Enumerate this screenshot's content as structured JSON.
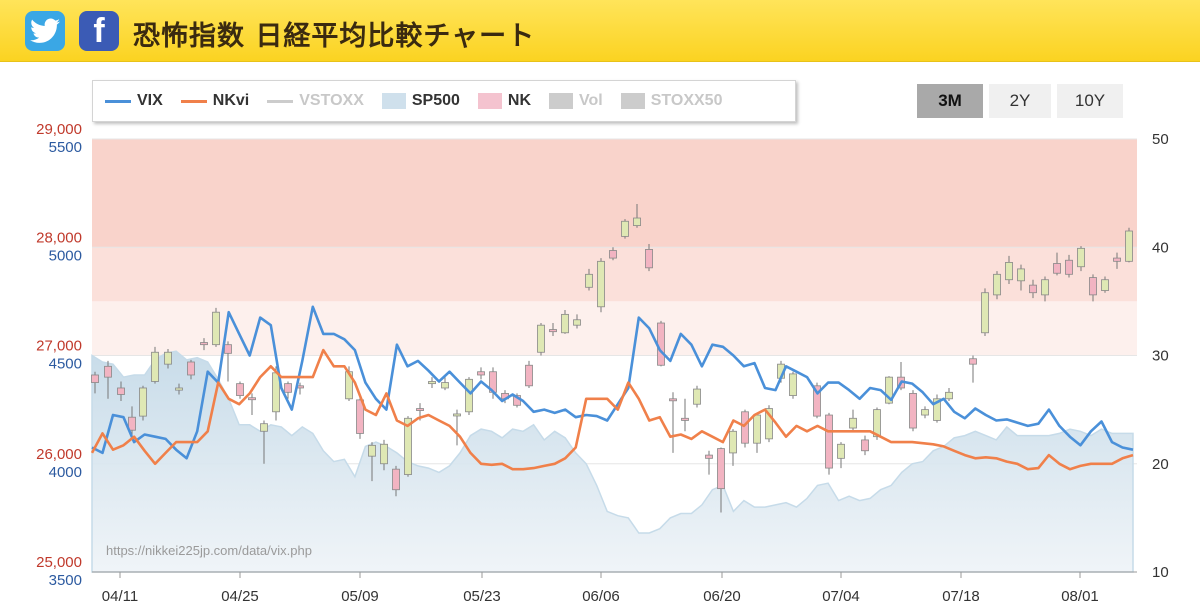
{
  "header": {
    "title": "恐怖指数 日経平均比較チャート",
    "twitter_icon": "twitter-icon",
    "facebook_icon": "facebook-icon",
    "facebook_glyph": "f"
  },
  "legend": [
    {
      "name": "VIX",
      "color": "#4a90d9",
      "kind": "line",
      "active": true
    },
    {
      "name": "NKvi",
      "color": "#f0804a",
      "kind": "line",
      "active": true
    },
    {
      "name": "VSTOXX",
      "color": "#cccccc",
      "kind": "line",
      "active": false
    },
    {
      "name": "SP500",
      "color": "#cfe0ec",
      "kind": "area",
      "active": true
    },
    {
      "name": "NK",
      "color": "#f4c3cf",
      "kind": "box",
      "active": true
    },
    {
      "name": "Vol",
      "color": "#cccccc",
      "kind": "box",
      "active": false
    },
    {
      "name": "STOXX50",
      "color": "#cccccc",
      "kind": "box",
      "active": false
    }
  ],
  "range_buttons": [
    {
      "label": "3M",
      "active": true
    },
    {
      "label": "2Y",
      "active": false
    },
    {
      "label": "10Y",
      "active": false
    }
  ],
  "watermark": "https://nikkei225jp.com/data/vix.php",
  "chart_data": {
    "type": "line",
    "axes": {
      "left_nk": {
        "ticks": [
          "29,000",
          "28,000",
          "27,000",
          "26,000",
          "25,000"
        ],
        "range": [
          25000,
          29000
        ],
        "color": "#c0392b"
      },
      "left_sp": {
        "ticks": [
          "5500",
          "5000",
          "4500",
          "4000",
          "3500"
        ],
        "range": [
          3500,
          5500
        ],
        "color": "#2c5aa0"
      },
      "right_vix": {
        "ticks": [
          "50",
          "40",
          "30",
          "20",
          "10"
        ],
        "range": [
          10,
          50
        ]
      }
    },
    "x_ticks": [
      "04/11",
      "04/25",
      "05/09",
      "05/23",
      "06/06",
      "06/20",
      "07/04",
      "07/18",
      "08/01"
    ],
    "bands": [
      {
        "from": 40,
        "to": 50,
        "color": "#f9d3cb"
      },
      {
        "from": 35,
        "to": 40,
        "color": "#fbe0da"
      },
      {
        "from": 30,
        "to": 35,
        "color": "#fdf0ed"
      }
    ],
    "series": [
      {
        "name": "VIX",
        "axis": "right_vix",
        "color": "#4a90d9",
        "values": [
          21.5,
          21.0,
          24.5,
          24.3,
          22.0,
          22.7,
          22.5,
          22.3,
          21.3,
          20.5,
          23.0,
          28.5,
          27.5,
          34.0,
          32.0,
          30.0,
          33.5,
          32.8,
          27.0,
          25.0,
          29.5,
          34.5,
          32.0,
          32.0,
          31.5,
          30.5,
          27.5,
          26.0,
          25.0,
          31.0,
          29.0,
          29.5,
          28.6,
          27.6,
          28.5,
          27.5,
          26.5,
          27.6,
          26.8,
          25.8,
          26.4,
          25.8,
          24.8,
          25.0,
          24.7,
          25.0,
          24.3,
          24.5,
          24.4,
          24.0,
          25.5,
          27.0,
          33.5,
          32.5,
          30.5,
          29.5,
          32.0,
          31.0,
          29.0,
          31.0,
          30.8,
          30.0,
          29.0,
          29.3,
          27.0,
          26.8,
          29.0,
          28.5,
          28.0,
          26.5,
          27.5,
          27.5,
          26.8,
          26.0,
          27.0,
          26.8,
          25.9,
          27.6,
          27.4,
          26.6,
          25.5,
          26.0,
          24.8,
          24.2,
          25.1,
          24.5,
          24.0,
          24.1,
          23.8,
          23.5,
          23.7,
          25.0,
          23.5,
          22.5,
          21.7,
          23.0,
          23.9,
          22.0,
          21.5,
          21.3
        ]
      },
      {
        "name": "NKvi",
        "axis": "right_vix",
        "color": "#f0804a",
        "values": [
          21.0,
          22.8,
          21.3,
          21.7,
          22.5,
          21.2,
          20.0,
          21.0,
          22.0,
          22.0,
          22.0,
          23.0,
          27.5,
          26.0,
          25.5,
          26.5,
          28.0,
          29.0,
          28.0,
          28.0,
          28.0,
          28.0,
          30.5,
          29.0,
          29.0,
          27.5,
          25.0,
          24.5,
          26.5,
          24.0,
          23.5,
          24.2,
          24.5,
          24.0,
          23.5,
          22.5,
          21.0,
          20.0,
          19.9,
          20.0,
          19.5,
          19.5,
          19.6,
          19.8,
          20.0,
          20.5,
          21.5,
          26.0,
          26.0,
          26.0,
          25.0,
          27.5,
          26.0,
          24.0,
          24.3,
          22.5,
          22.7,
          22.3,
          23.0,
          22.5,
          22.0,
          24.0,
          23.5,
          24.5,
          25.0,
          23.8,
          22.5,
          23.5,
          23.0,
          23.5,
          23.0,
          23.0,
          23.0,
          23.0,
          23.0,
          22.5,
          22.0,
          22.0,
          22.0,
          21.9,
          21.8,
          21.6,
          21.2,
          20.8,
          20.5,
          20.6,
          20.5,
          20.2,
          20.0,
          19.5,
          19.6,
          20.8,
          20.0,
          19.5,
          19.8,
          20.0,
          20.0,
          20.0,
          20.5,
          20.8
        ]
      },
      {
        "name": "SP500",
        "axis": "left_sp",
        "color": "#cfe0ec",
        "values": [
          4500,
          4470,
          4460,
          4400,
          4410,
          4410,
          4480,
          4510,
          4520,
          4480,
          4490,
          4470,
          4390,
          4300,
          4180,
          4180,
          4150,
          4180,
          4170,
          4130,
          4170,
          4140,
          4060,
          4010,
          4020,
          3940,
          4080,
          4100,
          4080,
          4050,
          4010,
          3990,
          3980,
          3960,
          3990,
          4050,
          4130,
          4160,
          4150,
          4120,
          4160,
          4150,
          4180,
          4110,
          4150,
          4120,
          4050,
          4000,
          3900,
          3780,
          3760,
          3750,
          3680,
          3680,
          3700,
          3750,
          3770,
          3770,
          3810,
          3880,
          3900,
          3780,
          3830,
          3800,
          3800,
          3810,
          3820,
          3800,
          3840,
          3900,
          3910,
          3830,
          3850,
          3830,
          3840,
          3880,
          3900,
          3960,
          4000,
          4010,
          4060,
          4080,
          4120,
          4130,
          4150,
          4130,
          4110,
          4170,
          4130,
          4130,
          4130,
          4130,
          4140,
          4160,
          4150,
          4130,
          4160,
          4140,
          4140,
          4140
        ]
      }
    ],
    "candles_nk": [
      {
        "x": 95,
        "o": 26750,
        "c": 26820,
        "h": 26850,
        "l": 26650,
        "up": false
      },
      {
        "x": 108,
        "o": 26800,
        "c": 26900,
        "h": 26950,
        "l": 26600,
        "up": false
      },
      {
        "x": 121,
        "o": 26700,
        "c": 26640,
        "h": 26760,
        "l": 26580,
        "up": false
      },
      {
        "x": 132,
        "o": 26430,
        "c": 26310,
        "h": 26530,
        "l": 26250,
        "up": false
      },
      {
        "x": 143,
        "o": 26440,
        "c": 26700,
        "h": 26720,
        "l": 26400,
        "up": true
      },
      {
        "x": 155,
        "o": 26760,
        "c": 27030,
        "h": 27080,
        "l": 26740,
        "up": true
      },
      {
        "x": 168,
        "o": 26920,
        "c": 27030,
        "h": 27060,
        "l": 26880,
        "up": true
      },
      {
        "x": 179,
        "o": 26680,
        "c": 26700,
        "h": 26740,
        "l": 26640,
        "up": true
      },
      {
        "x": 191,
        "o": 26820,
        "c": 26940,
        "h": 26960,
        "l": 26780,
        "up": false
      },
      {
        "x": 204,
        "o": 27100,
        "c": 27120,
        "h": 27160,
        "l": 27050,
        "up": false
      },
      {
        "x": 216,
        "o": 27100,
        "c": 27400,
        "h": 27440,
        "l": 27080,
        "up": true
      },
      {
        "x": 228,
        "o": 27100,
        "c": 27020,
        "h": 27130,
        "l": 26760,
        "up": false
      },
      {
        "x": 240,
        "o": 26740,
        "c": 26630,
        "h": 26760,
        "l": 26600,
        "up": false
      },
      {
        "x": 252,
        "o": 26610,
        "c": 26600,
        "h": 26650,
        "l": 26450,
        "up": false
      },
      {
        "x": 264,
        "o": 26300,
        "c": 26370,
        "h": 26400,
        "l": 26000,
        "up": true
      },
      {
        "x": 276,
        "o": 26480,
        "c": 26840,
        "h": 26900,
        "l": 26400,
        "up": true
      },
      {
        "x": 288,
        "o": 26740,
        "c": 26660,
        "h": 26760,
        "l": 26600,
        "up": false
      },
      {
        "x": 300,
        "o": 26700,
        "c": 26720,
        "h": 26750,
        "l": 26640,
        "up": false
      },
      {
        "x": 349,
        "o": 26600,
        "c": 26850,
        "h": 26900,
        "l": 26580,
        "up": true
      },
      {
        "x": 360,
        "o": 26590,
        "c": 26280,
        "h": 26610,
        "l": 26230,
        "up": false
      },
      {
        "x": 372,
        "o": 26070,
        "c": 26170,
        "h": 26200,
        "l": 25840,
        "up": true
      },
      {
        "x": 384,
        "o": 26000,
        "c": 26180,
        "h": 26220,
        "l": 25940,
        "up": true
      },
      {
        "x": 396,
        "o": 25950,
        "c": 25760,
        "h": 25980,
        "l": 25700,
        "up": false
      },
      {
        "x": 408,
        "o": 25900,
        "c": 26420,
        "h": 26440,
        "l": 25880,
        "up": true
      },
      {
        "x": 420,
        "o": 26510,
        "c": 26500,
        "h": 26560,
        "l": 26400,
        "up": false
      },
      {
        "x": 432,
        "o": 26740,
        "c": 26760,
        "h": 26800,
        "l": 26700,
        "up": true
      },
      {
        "x": 445,
        "o": 26700,
        "c": 26750,
        "h": 26800,
        "l": 26680,
        "up": true
      },
      {
        "x": 457,
        "o": 26450,
        "c": 26460,
        "h": 26500,
        "l": 26170,
        "up": true
      },
      {
        "x": 469,
        "o": 26480,
        "c": 26780,
        "h": 26800,
        "l": 26450,
        "up": true
      },
      {
        "x": 481,
        "o": 26850,
        "c": 26820,
        "h": 26890,
        "l": 26780,
        "up": false
      },
      {
        "x": 493,
        "o": 26850,
        "c": 26660,
        "h": 26890,
        "l": 26600,
        "up": false
      },
      {
        "x": 505,
        "o": 26650,
        "c": 26600,
        "h": 26680,
        "l": 26560,
        "up": false
      },
      {
        "x": 517,
        "o": 26630,
        "c": 26540,
        "h": 26650,
        "l": 26520,
        "up": false
      },
      {
        "x": 529,
        "o": 26720,
        "c": 26910,
        "h": 26950,
        "l": 26700,
        "up": false
      },
      {
        "x": 541,
        "o": 27030,
        "c": 27280,
        "h": 27300,
        "l": 27000,
        "up": true
      },
      {
        "x": 553,
        "o": 27220,
        "c": 27240,
        "h": 27300,
        "l": 27180,
        "up": false
      },
      {
        "x": 565,
        "o": 27210,
        "c": 27380,
        "h": 27420,
        "l": 27200,
        "up": true
      },
      {
        "x": 577,
        "o": 27280,
        "c": 27330,
        "h": 27380,
        "l": 27250,
        "up": true
      },
      {
        "x": 589,
        "o": 27630,
        "c": 27750,
        "h": 27800,
        "l": 27600,
        "up": true
      },
      {
        "x": 601,
        "o": 27450,
        "c": 27870,
        "h": 27900,
        "l": 27400,
        "up": true
      },
      {
        "x": 613,
        "o": 27900,
        "c": 27970,
        "h": 28000,
        "l": 27880,
        "up": false
      },
      {
        "x": 625,
        "o": 28100,
        "c": 28240,
        "h": 28260,
        "l": 28080,
        "up": true
      },
      {
        "x": 637,
        "o": 28200,
        "c": 28270,
        "h": 28400,
        "l": 28180,
        "up": true
      },
      {
        "x": 649,
        "o": 27980,
        "c": 27810,
        "h": 28030,
        "l": 27780,
        "up": false
      },
      {
        "x": 661,
        "o": 27300,
        "c": 26910,
        "h": 27320,
        "l": 26900,
        "up": false
      },
      {
        "x": 673,
        "o": 26600,
        "c": 26590,
        "h": 26660,
        "l": 26100,
        "up": false
      },
      {
        "x": 685,
        "o": 26420,
        "c": 26400,
        "h": 26600,
        "l": 26300,
        "up": false
      },
      {
        "x": 697,
        "o": 26550,
        "c": 26690,
        "h": 26720,
        "l": 26520,
        "up": true
      },
      {
        "x": 709,
        "o": 26080,
        "c": 26050,
        "h": 26120,
        "l": 25900,
        "up": false
      },
      {
        "x": 721,
        "o": 26140,
        "c": 25770,
        "h": 26150,
        "l": 25550,
        "up": false
      },
      {
        "x": 733,
        "o": 26100,
        "c": 26300,
        "h": 26320,
        "l": 25980,
        "up": true
      },
      {
        "x": 745,
        "o": 26480,
        "c": 26190,
        "h": 26500,
        "l": 26150,
        "up": false
      },
      {
        "x": 757,
        "o": 26190,
        "c": 26450,
        "h": 26470,
        "l": 26100,
        "up": true
      },
      {
        "x": 769,
        "o": 26230,
        "c": 26510,
        "h": 26540,
        "l": 26200,
        "up": true
      },
      {
        "x": 781,
        "o": 26790,
        "c": 26920,
        "h": 26950,
        "l": 26750,
        "up": true
      },
      {
        "x": 793,
        "o": 26830,
        "c": 26630,
        "h": 26850,
        "l": 26600,
        "up": true
      },
      {
        "x": 817,
        "o": 26720,
        "c": 26440,
        "h": 26750,
        "l": 26420,
        "up": false
      },
      {
        "x": 829,
        "o": 26450,
        "c": 25960,
        "h": 26470,
        "l": 25900,
        "up": false
      },
      {
        "x": 841,
        "o": 26050,
        "c": 26180,
        "h": 26200,
        "l": 25960,
        "up": true
      },
      {
        "x": 853,
        "o": 26330,
        "c": 26420,
        "h": 26500,
        "l": 26300,
        "up": true
      },
      {
        "x": 865,
        "o": 26220,
        "c": 26120,
        "h": 26260,
        "l": 26080,
        "up": false
      },
      {
        "x": 877,
        "o": 26250,
        "c": 26500,
        "h": 26520,
        "l": 26220,
        "up": true
      },
      {
        "x": 889,
        "o": 26560,
        "c": 26800,
        "h": 26810,
        "l": 26550,
        "up": true
      },
      {
        "x": 901,
        "o": 26800,
        "c": 26700,
        "h": 26940,
        "l": 26680,
        "up": false
      },
      {
        "x": 913,
        "o": 26650,
        "c": 26330,
        "h": 26680,
        "l": 26300,
        "up": false
      },
      {
        "x": 925,
        "o": 26450,
        "c": 26500,
        "h": 26530,
        "l": 26420,
        "up": true
      },
      {
        "x": 937,
        "o": 26400,
        "c": 26600,
        "h": 26640,
        "l": 26380,
        "up": true
      },
      {
        "x": 949,
        "o": 26600,
        "c": 26660,
        "h": 26700,
        "l": 26580,
        "up": true
      },
      {
        "x": 973,
        "o": 26920,
        "c": 26970,
        "h": 27000,
        "l": 26750,
        "up": false
      },
      {
        "x": 985,
        "o": 27210,
        "c": 27580,
        "h": 27620,
        "l": 27180,
        "up": true
      },
      {
        "x": 997,
        "o": 27560,
        "c": 27750,
        "h": 27780,
        "l": 27520,
        "up": true
      },
      {
        "x": 1009,
        "o": 27700,
        "c": 27860,
        "h": 27920,
        "l": 27660,
        "up": true
      },
      {
        "x": 1021,
        "o": 27690,
        "c": 27800,
        "h": 27840,
        "l": 27600,
        "up": true
      },
      {
        "x": 1033,
        "o": 27580,
        "c": 27650,
        "h": 27700,
        "l": 27530,
        "up": false
      },
      {
        "x": 1045,
        "o": 27560,
        "c": 27700,
        "h": 27730,
        "l": 27500,
        "up": true
      },
      {
        "x": 1057,
        "o": 27760,
        "c": 27850,
        "h": 27950,
        "l": 27740,
        "up": false
      },
      {
        "x": 1069,
        "o": 27750,
        "c": 27880,
        "h": 27930,
        "l": 27720,
        "up": false
      },
      {
        "x": 1081,
        "o": 27820,
        "c": 27990,
        "h": 28010,
        "l": 27780,
        "up": true
      },
      {
        "x": 1093,
        "o": 27720,
        "c": 27560,
        "h": 27750,
        "l": 27500,
        "up": false
      },
      {
        "x": 1105,
        "o": 27600,
        "c": 27700,
        "h": 27730,
        "l": 27580,
        "up": true
      },
      {
        "x": 1117,
        "o": 27870,
        "c": 27900,
        "h": 27950,
        "l": 27800,
        "up": false
      },
      {
        "x": 1129,
        "o": 27870,
        "c": 28150,
        "h": 28180,
        "l": 27860,
        "up": true
      }
    ]
  }
}
